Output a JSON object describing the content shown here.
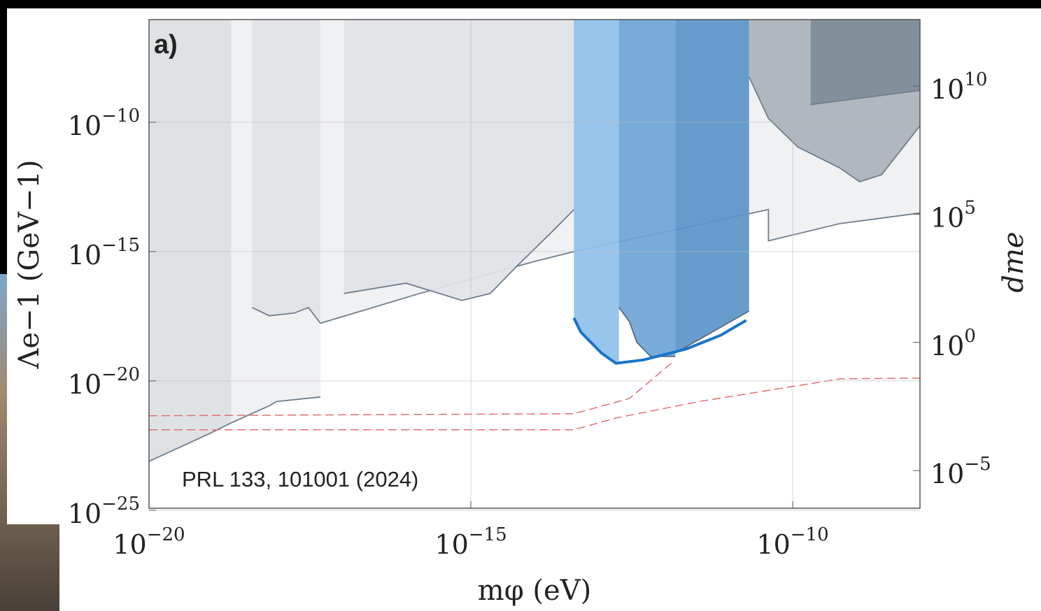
{
  "chart_data": {
    "type": "line",
    "panel_label": "a)",
    "annotation": "PRL 133, 101001 (2024)",
    "x_label": "mφ (eV)",
    "y_label": "Λe−1 (GeV−1)",
    "y2_label": "dme",
    "xscale": "log",
    "yscale": "log",
    "y2scale": "log",
    "grid": true,
    "xlim": [
      1e-20,
      9.5e-09
    ],
    "ylim": [
      1.2e-25,
      9.3e-07
    ],
    "y2lim": [
      3.4e-07,
      3900000000000.0
    ],
    "xticks": [
      {
        "value": 1e-20,
        "label": "10−20"
      },
      {
        "value": 1e-15,
        "label": "10−15"
      },
      {
        "value": 1e-10,
        "label": "10−10"
      }
    ],
    "yticks": [
      {
        "value": 1e-25,
        "label": "10−25"
      },
      {
        "value": 1e-20,
        "label": "10−20"
      },
      {
        "value": 1e-15,
        "label": "10−15"
      },
      {
        "value": 1e-10,
        "label": "10−10"
      }
    ],
    "y2ticks": [
      {
        "value": 1e-05,
        "label": "10−5"
      },
      {
        "value": 1,
        "label": "100"
      },
      {
        "value": 100000.0,
        "label": "105"
      },
      {
        "value": 10000000000.0,
        "label": "1010"
      }
    ],
    "series": [
      {
        "color": "#eef0f2",
        "fill": "above",
        "stroke": "#6f7e8c",
        "x": [
          4.6e-18,
          1.6e-16,
          8.9e-15,
          4e-14,
          4.2e-11,
          4.2e-11,
          5.4e-10,
          9.5e-09
        ],
        "values": [
          1.7e-18,
          2.4e-17,
          3.9e-16,
          1e-15,
          4.2e-14,
          2.6e-15,
          1.2e-14,
          3.1e-14
        ]
      },
      {
        "color": "#dcdfe3",
        "fill": "above",
        "stroke": "#6f7e8c",
        "x": [
          1e-20,
          8.8e-20,
          1.9e-19
        ],
        "values": [
          7.8e-24,
          9.3e-23,
          2.4e-22
        ]
      },
      {
        "color": "#eef0f2",
        "fill": "above",
        "stroke": "#6f7e8c",
        "x": [
          1.9e-19,
          7.4e-19,
          9.6e-19,
          4.6e-18
        ],
        "values": [
          2.4e-22,
          1.1e-21,
          1.6e-21,
          2.4e-21
        ]
      },
      {
        "color": "#e1e4e7",
        "fill": "above",
        "stroke": "#6f7e8c",
        "x": [
          4e-19,
          7.4e-19,
          1.8e-18,
          3e-18,
          4.6e-18
        ],
        "values": [
          6.9e-18,
          3.3e-18,
          4.2e-18,
          6.9e-18,
          1.7e-18
        ]
      },
      {
        "color": "#e1e4e7",
        "fill": "above",
        "stroke": "#6f7e8c",
        "x": [
          1.07e-17,
          9.8e-17,
          7.3e-16,
          2e-15,
          5.3e-15,
          1.9e-14,
          4e-14
        ],
        "values": [
          2.4e-17,
          6e-17,
          1.3e-17,
          2.4e-17,
          2.9e-16,
          6.5e-15,
          4.2e-14
        ]
      },
      {
        "color": "#aab2ba",
        "fill": "above",
        "stroke": "#6f7e8c",
        "x": [
          2.1e-11,
          4.2e-11,
          1.2e-10,
          5.4e-10,
          1.1e-09,
          2.4e-09,
          9.5e-09
        ],
        "values": [
          5.7e-09,
          1.4e-10,
          1.1e-11,
          1.7e-12,
          5e-13,
          9.3e-13,
          7.3e-11
        ]
      },
      {
        "color": "#7f8c98",
        "fill": "above",
        "stroke": "#6f7e8c",
        "x": [
          1.9e-10,
          9.5e-09
        ],
        "values": [
          4.8e-10,
          1.7e-09
        ]
      },
      {
        "color": "#8fc0ea",
        "fill": "above",
        "x": [
          4e-14,
          5.1e-14,
          1.07e-13,
          2e-13
        ],
        "values": [
          2.7e-18,
          7.8e-19,
          1.2e-19,
          4.8e-20
        ]
      },
      {
        "color": "#6ea4d8",
        "fill": "above",
        "stroke": "#5a6c7c",
        "x": [
          2e-13,
          2.9e-13,
          3.8e-13,
          6.2e-13,
          1.5e-12
        ],
        "values": [
          6.9e-18,
          2e-18,
          3.1e-19,
          8.9e-20,
          8.9e-20
        ]
      },
      {
        "color": "#5a94c9",
        "fill": "above",
        "stroke": "#5a6c7c",
        "x": [
          1.5e-12,
          2.1e-11
        ],
        "values": [
          1.2e-19,
          5e-18
        ]
      },
      {
        "color": "#1a73c9",
        "width": 4,
        "x": [
          4e-14,
          5.1e-14,
          1.07e-13,
          1.8e-13,
          4.8e-13,
          2.2e-12,
          7.6e-12,
          1.9e-11
        ],
        "values": [
          2.7e-18,
          7.8e-19,
          1.2e-19,
          4.8e-20,
          6.5e-20,
          1.7e-19,
          5.8e-19,
          2.2e-18
        ]
      },
      {
        "color": "#e07070",
        "dash": true,
        "x": [
          1e-20,
          4e-14,
          2.9e-13,
          1.3e-12
        ],
        "values": [
          4.5e-22,
          5.4e-22,
          2.1e-21,
          4.8e-20
        ]
      },
      {
        "color": "#e07070",
        "dash": true,
        "x": [
          1e-20,
          4e-14,
          1.8e-13,
          3.5e-12,
          5.4e-10,
          9.5e-09
        ],
        "values": [
          1.3e-22,
          1.3e-22,
          3.7e-22,
          1.6e-21,
          1.2e-20,
          1.3e-20
        ]
      }
    ]
  }
}
